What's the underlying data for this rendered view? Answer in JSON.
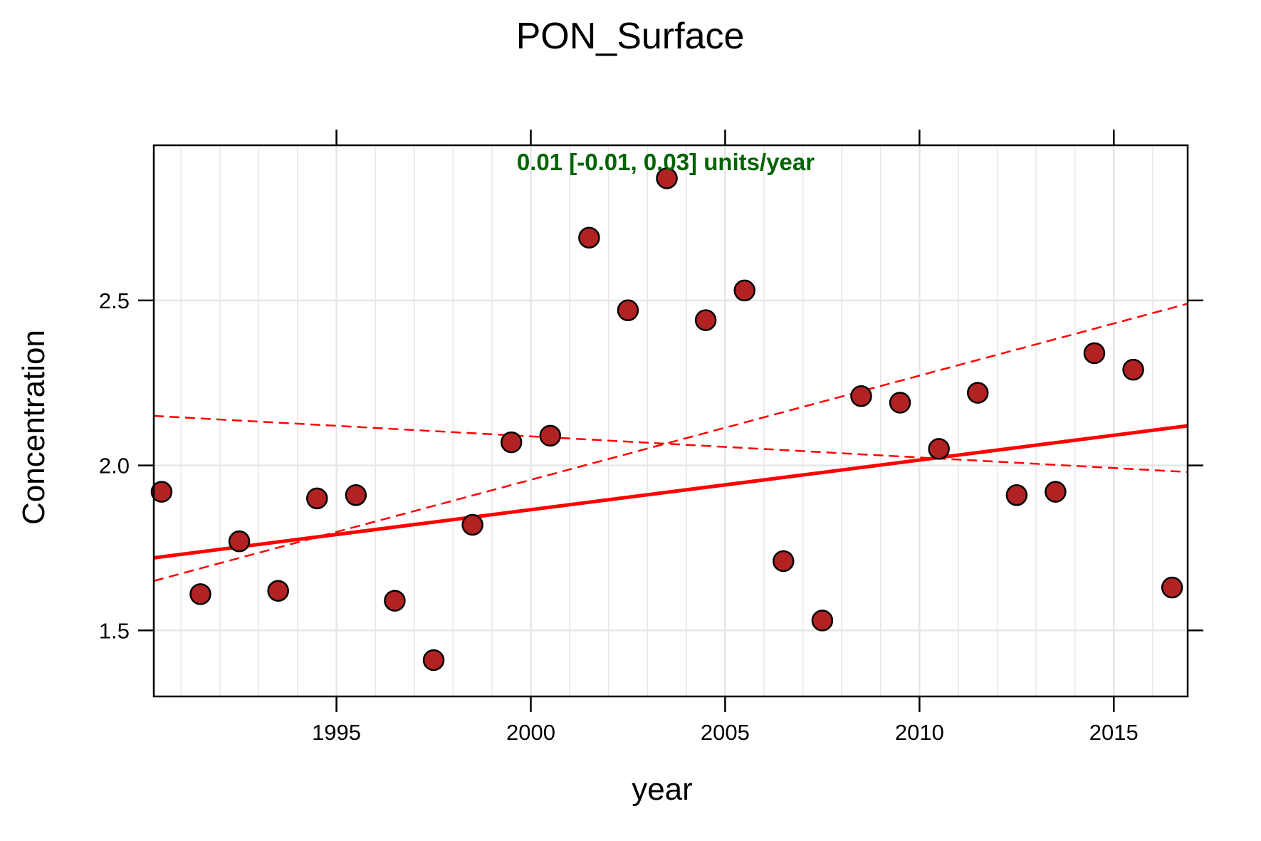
{
  "chart_data": {
    "type": "scatter",
    "title": "PON_Surface",
    "xlabel": "year",
    "ylabel": "Concentration",
    "annotation": "0.01 [-0.01, 0.03] units/year",
    "xlim": [
      1990.3,
      2016.9
    ],
    "ylim": [
      1.3,
      2.97
    ],
    "x_ticks": [
      1995,
      2000,
      2005,
      2010,
      2015
    ],
    "y_ticks": [
      1.5,
      2.0,
      2.5
    ],
    "x_tick_labels": [
      "1995",
      "2000",
      "2005",
      "2010",
      "2015"
    ],
    "y_tick_labels": [
      "1.5",
      "2.0",
      "2.5"
    ],
    "grid": true,
    "points": {
      "x": [
        1990.5,
        1991.5,
        1992.5,
        1993.5,
        1994.5,
        1995.5,
        1996.5,
        1997.5,
        1998.5,
        1999.5,
        2000.5,
        2001.5,
        2002.5,
        2003.5,
        2004.5,
        2005.5,
        2006.5,
        2007.5,
        2008.5,
        2009.5,
        2010.5,
        2011.5,
        2012.5,
        2013.5,
        2014.5,
        2015.5,
        2016.5
      ],
      "y": [
        1.92,
        1.61,
        1.77,
        1.62,
        1.9,
        1.91,
        1.59,
        1.41,
        1.82,
        2.07,
        2.09,
        2.69,
        2.47,
        2.87,
        2.44,
        2.53,
        1.71,
        1.53,
        2.21,
        2.19,
        2.05,
        2.22,
        1.91,
        1.92,
        2.34,
        2.29,
        1.63
      ]
    },
    "trend": {
      "x": [
        1990.3,
        2016.9
      ],
      "y": [
        1.72,
        2.12
      ]
    },
    "ci_lower": {
      "x": [
        1990.3,
        2016.9
      ],
      "y": [
        2.15,
        1.98
      ]
    },
    "ci_upper": {
      "x": [
        1990.3,
        2016.9
      ],
      "y": [
        1.65,
        2.49
      ]
    },
    "colors": {
      "point_fill": "#b22222",
      "point_stroke": "#000000",
      "trend": "#ff0000",
      "annotation": "#006400",
      "grid": "#e6e6e6"
    }
  }
}
